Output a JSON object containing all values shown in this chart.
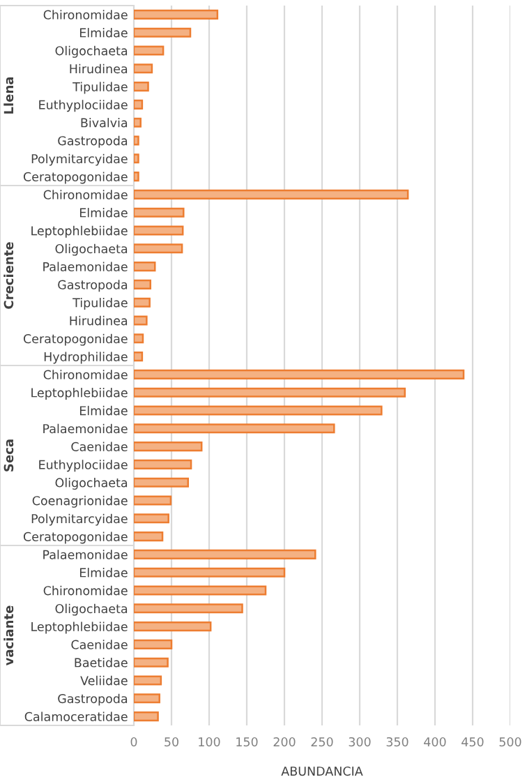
{
  "chart_data": {
    "type": "bar",
    "orientation": "horizontal",
    "xlabel": "ABUNDANCIA",
    "annotations": [
      "Llena",
      "Creciente",
      "Seca",
      "vaciante"
    ],
    "categories": [
      "Chironomidae",
      "Elmidae",
      "Oligochaeta",
      "Hirudinea",
      "Tipulidae",
      "Euthyplociidae",
      "Bivalvia",
      "Gastropoda",
      "Polymitarcyidae",
      "Ceratopogonidae",
      "Chironomidae",
      "Elmidae",
      "Leptophlebiidae",
      "Oligochaeta",
      "Palaemonidae",
      "Gastropoda",
      "Tipulidae",
      "Hirudinea",
      "Ceratopogonidae",
      "Hydrophilidae",
      "Chironomidae",
      "Leptophlebiidae",
      "Elmidae",
      "Palaemonidae",
      "Caenidae",
      "Euthyplociidae",
      "Oligochaeta",
      "Coenagrionidae",
      "Polymitarcyidae",
      "Ceratopogonidae",
      "Palaemonidae",
      "Elmidae",
      "Chironomidae",
      "Oligochaeta",
      "Leptophlebiidae",
      "Caenidae",
      "Baetidae",
      "Veliidae",
      "Gastropoda",
      "Calamoceratidae"
    ],
    "values": [
      111,
      75,
      39,
      24,
      19,
      11,
      9,
      6,
      6,
      6,
      364,
      66,
      65,
      64,
      28,
      22,
      21,
      17,
      12,
      11,
      438,
      360,
      329,
      266,
      90,
      76,
      72,
      49,
      46,
      38,
      241,
      200,
      175,
      144,
      102,
      50,
      45,
      36,
      34,
      32
    ],
    "color": "#f4b183",
    "xlim": [
      0,
      500
    ],
    "xticks": [
      0,
      50,
      100,
      150,
      200,
      250,
      300,
      350,
      400,
      450,
      500
    ],
    "grid": "x",
    "legend": false
  }
}
